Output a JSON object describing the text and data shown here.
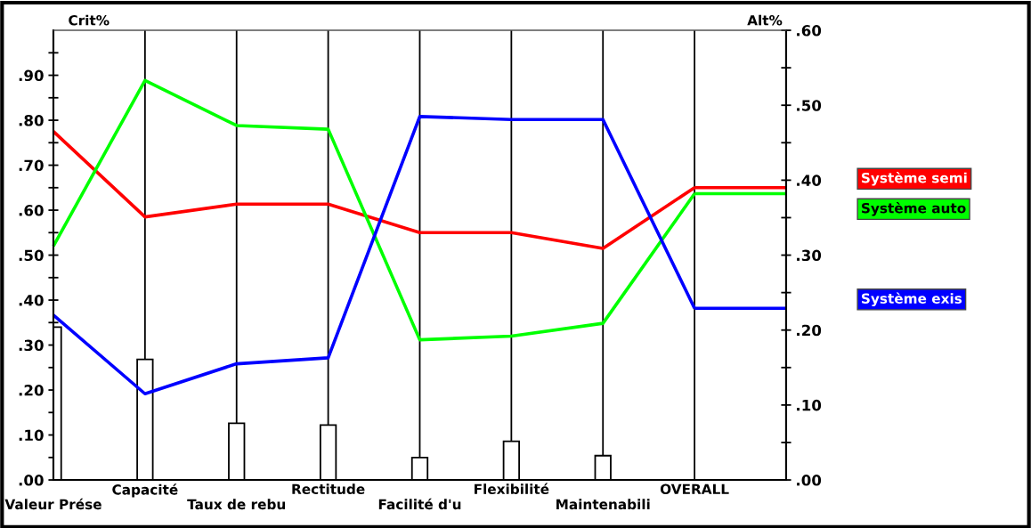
{
  "chart_data": {
    "type": "line",
    "ylabel": "Crit%",
    "y2label": "Alt%",
    "categories": [
      "Valeur Prése",
      "Capacité",
      "Taux de rebu",
      "Rectitude",
      "Facilité d'u",
      "Flexibilité",
      "Maintenabili",
      "OVERALL"
    ],
    "ylim": [
      0,
      1.0
    ],
    "yticks": [
      {
        "value": 0,
        "label": ".00"
      },
      {
        "value": 0.05,
        "label": null
      },
      {
        "value": 0.1,
        "label": ".10"
      },
      {
        "value": 0.15,
        "label": null
      },
      {
        "value": 0.2,
        "label": ".20"
      },
      {
        "value": 0.25,
        "label": null
      },
      {
        "value": 0.3,
        "label": ".30"
      },
      {
        "value": 0.35,
        "label": null
      },
      {
        "value": 0.4,
        "label": ".40"
      },
      {
        "value": 0.45,
        "label": null
      },
      {
        "value": 0.5,
        "label": ".50"
      },
      {
        "value": 0.55,
        "label": null
      },
      {
        "value": 0.6,
        "label": ".60"
      },
      {
        "value": 0.65,
        "label": null
      },
      {
        "value": 0.7,
        "label": ".70"
      },
      {
        "value": 0.75,
        "label": null
      },
      {
        "value": 0.8,
        "label": ".80"
      },
      {
        "value": 0.85,
        "label": null
      },
      {
        "value": 0.9,
        "label": ".90"
      },
      {
        "value": 0.95,
        "label": null
      }
    ],
    "y2lim": [
      0,
      0.6
    ],
    "y2ticks": [
      {
        "value": 0,
        "label": ".00"
      },
      {
        "value": 0.05,
        "label": null
      },
      {
        "value": 0.1,
        "label": ".10"
      },
      {
        "value": 0.15,
        "label": null
      },
      {
        "value": 0.2,
        "label": ".20"
      },
      {
        "value": 0.25,
        "label": null
      },
      {
        "value": 0.3,
        "label": ".30"
      },
      {
        "value": 0.35,
        "label": null
      },
      {
        "value": 0.4,
        "label": ".40"
      },
      {
        "value": 0.45,
        "label": null
      },
      {
        "value": 0.5,
        "label": ".50"
      },
      {
        "value": 0.55,
        "label": null
      },
      {
        "value": 0.6,
        "label": ".60"
      }
    ],
    "grid": "x",
    "legend": "right",
    "ref_lines": [
      {
        "axis": "y2",
        "value": 0.39,
        "color": "#ff0000"
      },
      {
        "axis": "y2",
        "value": 0.382,
        "color": "#00ff00"
      },
      {
        "axis": "y2",
        "value": 0.229,
        "color": "#0000ff"
      }
    ],
    "series": [
      {
        "type": "bar",
        "color": "#ffffff",
        "values": [
          0.34,
          0.268,
          0.126,
          0.122,
          0.05,
          0.086,
          0.054,
          null
        ]
      },
      {
        "name": "Système semi",
        "color": "#ff0000",
        "axis": "y2",
        "values": [
          0.465,
          0.351,
          0.368,
          0.368,
          0.33,
          0.33,
          0.309,
          0.39
        ]
      },
      {
        "name": "Système auto",
        "color": "#00ff00",
        "axis": "y2",
        "values": [
          0.312,
          0.533,
          0.473,
          0.468,
          0.187,
          0.192,
          0.209,
          0.382
        ]
      },
      {
        "name": "Système exis",
        "color": "#0000ff",
        "axis": "y2",
        "values": [
          0.22,
          0.115,
          0.155,
          0.163,
          0.485,
          0.481,
          0.481,
          0.229
        ]
      }
    ]
  }
}
